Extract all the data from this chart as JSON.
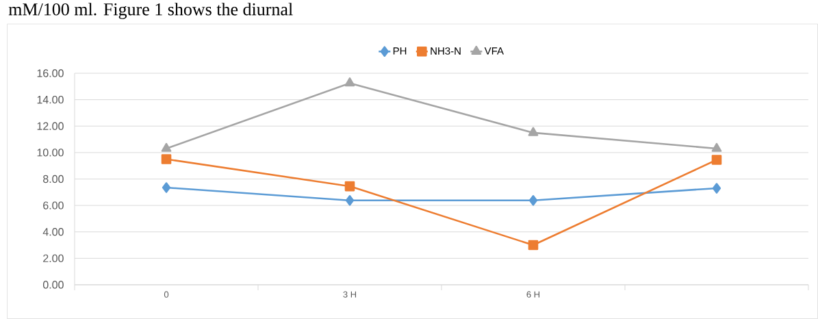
{
  "chart_data": {
    "type": "line",
    "annotations": [
      "mM/100 ml. Figure 1 shows the diurnal"
    ],
    "categories": [
      "0",
      "3 H",
      "6 H",
      null
    ],
    "series": [
      {
        "name": "PH",
        "color": "#5b9bd5",
        "marker": "diamond",
        "values": [
          7.35,
          6.38,
          6.38,
          7.3
        ]
      },
      {
        "name": "NH3-N",
        "color": "#ed7d31",
        "marker": "square",
        "values": [
          9.5,
          7.45,
          3.0,
          9.45
        ]
      },
      {
        "name": "VFA",
        "color": "#a5a5a5",
        "marker": "triangle",
        "values": [
          10.3,
          15.25,
          11.5,
          10.3
        ]
      }
    ],
    "ylim": [
      0,
      16
    ],
    "yticks": [
      {
        "value": 0,
        "label": "0.00"
      },
      {
        "value": 2,
        "label": "2.00"
      },
      {
        "value": 4,
        "label": "4.00"
      },
      {
        "value": 6,
        "label": "6.00"
      },
      {
        "value": 8,
        "label": "8.00"
      },
      {
        "value": 10,
        "label": "10.00"
      },
      {
        "value": 12,
        "label": "12.00"
      },
      {
        "value": 14,
        "label": "14.00"
      },
      {
        "value": 16,
        "label": "16.00"
      }
    ],
    "grid": "y",
    "legend": "top",
    "line_style": "solid"
  }
}
